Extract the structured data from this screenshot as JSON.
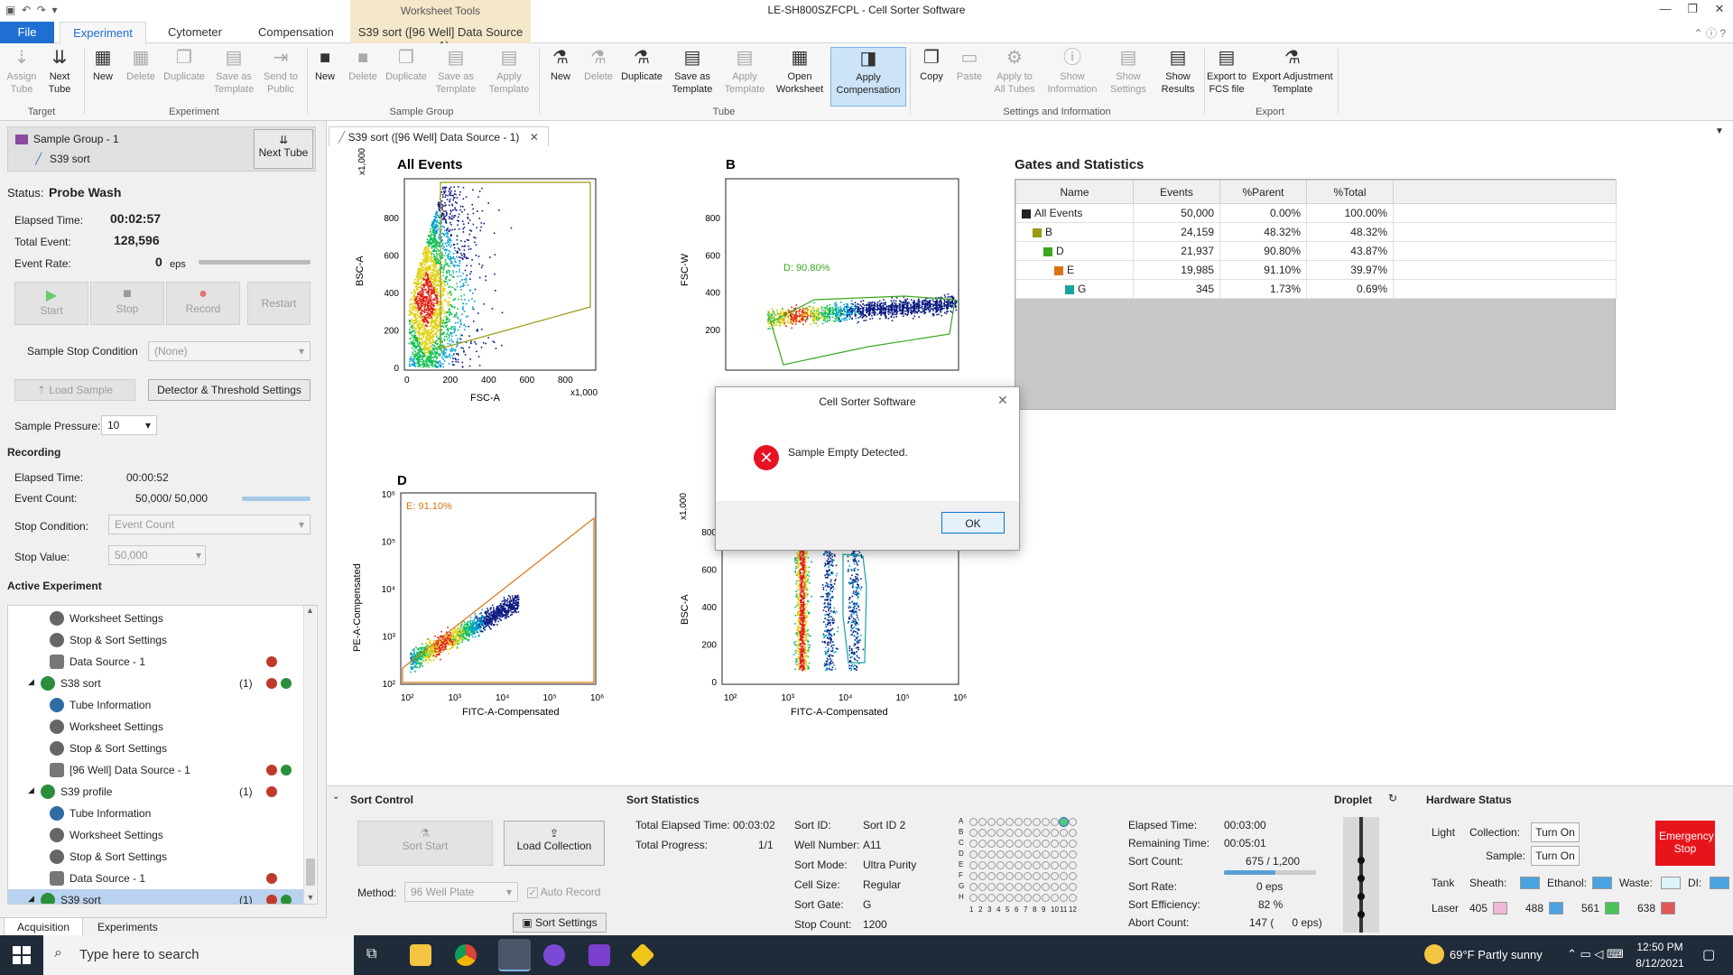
{
  "app": {
    "title": "LE-SH800SZFCPL - Cell Sorter Software",
    "context_tab_header": "Worksheet Tools"
  },
  "tabs": [
    "File",
    "Experiment",
    "Cytometer",
    "Compensation",
    "S39 sort ([96 Well] Data Source - 1)"
  ],
  "ribbon": {
    "target": {
      "label": "Target",
      "buttons": [
        "Assign Tube",
        "Next Tube"
      ]
    },
    "experiment": {
      "label": "Experiment",
      "buttons": [
        "New",
        "Delete",
        "Duplicate",
        "Save as Template",
        "Send to Public"
      ]
    },
    "sample_group": {
      "label": "Sample Group",
      "buttons": [
        "New",
        "Delete",
        "Duplicate",
        "Save as Template",
        "Apply Template"
      ]
    },
    "tube": {
      "label": "Tube",
      "buttons": [
        "New",
        "Delete",
        "Duplicate",
        "Save as Template",
        "Apply Template",
        "Open Worksheet",
        "Apply Compensation"
      ]
    },
    "settings": {
      "label": "Settings and Information",
      "buttons": [
        "Copy",
        "Paste",
        "Apply to All Tubes",
        "Show Information",
        "Show Settings",
        "Show Results"
      ]
    },
    "export": {
      "label": "Export",
      "buttons": [
        "Export to FCS file",
        "Export Adjustment Template"
      ]
    }
  },
  "left": {
    "sample_group": "Sample Group - 1",
    "sample": "S39 sort",
    "next_tube": "Next Tube",
    "status_label": "Status:",
    "status": "Probe Wash",
    "elapsed_label": "Elapsed Time:",
    "elapsed": "00:02:57",
    "total_event_label": "Total Event:",
    "total_event": "128,596",
    "event_rate_label": "Event Rate:",
    "event_rate": "0",
    "eps": "eps",
    "controls": [
      "Start",
      "Stop",
      "Record",
      "Restart"
    ],
    "stop_condition_label": "Sample Stop Condition",
    "stop_condition": "(None)",
    "load_sample": "Load Sample",
    "detector_btn": "Detector & Threshold Settings",
    "pressure_label": "Sample Pressure:",
    "pressure": "10",
    "recording_label": "Recording",
    "rec_elapsed_label": "Elapsed Time:",
    "rec_elapsed": "00:00:52",
    "rec_event_count_label": "Event Count:",
    "rec_event_count": "50,000/ 50,000",
    "rec_stop_cond_label": "Stop Condition:",
    "rec_stop_cond": "Event Count",
    "rec_stop_value_label": "Stop Value:",
    "rec_stop_value": "50,000",
    "active_exp_label": "Active Experiment",
    "tree": [
      {
        "label": "Worksheet Settings",
        "indent": 2,
        "icon": "gear",
        "count": "",
        "dots": ""
      },
      {
        "label": "Stop & Sort Settings",
        "indent": 2,
        "icon": "gear",
        "count": "",
        "dots": ""
      },
      {
        "label": "Data Source - 1",
        "indent": 2,
        "icon": "db",
        "count": "",
        "dots": "r"
      },
      {
        "label": "S38 sort",
        "indent": 1,
        "icon": "tube",
        "count": "(1)",
        "dots": "rg"
      },
      {
        "label": "Tube Information",
        "indent": 2,
        "icon": "info",
        "count": "",
        "dots": ""
      },
      {
        "label": "Worksheet Settings",
        "indent": 2,
        "icon": "gear",
        "count": "",
        "dots": ""
      },
      {
        "label": "Stop & Sort Settings",
        "indent": 2,
        "icon": "gear",
        "count": "",
        "dots": ""
      },
      {
        "label": "[96 Well] Data Source - 1",
        "indent": 2,
        "icon": "db",
        "count": "",
        "dots": "rg"
      },
      {
        "label": "S39 profile",
        "indent": 1,
        "icon": "tube",
        "count": "(1)",
        "dots": "r"
      },
      {
        "label": "Tube Information",
        "indent": 2,
        "icon": "info",
        "count": "",
        "dots": ""
      },
      {
        "label": "Worksheet Settings",
        "indent": 2,
        "icon": "gear",
        "count": "",
        "dots": ""
      },
      {
        "label": "Stop & Sort Settings",
        "indent": 2,
        "icon": "gear",
        "count": "",
        "dots": ""
      },
      {
        "label": "Data Source - 1",
        "indent": 2,
        "icon": "db",
        "count": "",
        "dots": "r"
      },
      {
        "label": "S39 sort",
        "indent": 1,
        "icon": "tube",
        "count": "(1)",
        "dots": "rg",
        "selected": true
      }
    ],
    "bottom_tabs": [
      "Acquisition",
      "Experiments"
    ]
  },
  "doc_tab": "S39 sort ([96 Well] Data Source - 1)",
  "plots": {
    "all_events": {
      "title": "All Events",
      "xlabel": "FSC-A",
      "ylabel": "BSC-A",
      "x_ticks": [
        "0",
        "200",
        "400",
        "600",
        "800"
      ],
      "y_ticks": [
        "0",
        "200",
        "400",
        "600",
        "800"
      ],
      "mult": "x1,000"
    },
    "b": {
      "title": "B",
      "ylabel": "FSC-W",
      "y_ticks": [
        "200",
        "400",
        "600",
        "800"
      ],
      "gate": "D: 90.80%"
    },
    "d": {
      "title": "D",
      "xlabel": "FITC-A-Compensated",
      "ylabel": "PE-A-Compensated",
      "x_ticks": [
        "10²",
        "10³",
        "10⁴",
        "10⁵",
        "10⁶"
      ],
      "y_ticks": [
        "10²",
        "10³",
        "10⁴",
        "10⁵",
        "10⁶"
      ],
      "gate": "E: 91.10%"
    },
    "e": {
      "xlabel": "FITC-A-Compensated",
      "ylabel": "BSC-A",
      "x_ticks": [
        "10²",
        "10³",
        "10⁴",
        "10⁵",
        "10⁶"
      ],
      "y_ticks": [
        "0",
        "200",
        "400",
        "600",
        "800"
      ],
      "mult": "x1,000"
    }
  },
  "gates": {
    "title": "Gates and Statistics",
    "headers": [
      "Name",
      "Events",
      "%Parent",
      "%Total"
    ],
    "rows": [
      {
        "name": "All Events",
        "events": "50,000",
        "parent": "0.00%",
        "total": "100.00%",
        "color": "#222222",
        "indent": 0
      },
      {
        "name": "B",
        "events": "24,159",
        "parent": "48.32%",
        "total": "48.32%",
        "color": "#9a9a10",
        "indent": 1
      },
      {
        "name": "D",
        "events": "21,937",
        "parent": "90.80%",
        "total": "43.87%",
        "color": "#3aa81c",
        "indent": 2
      },
      {
        "name": "E",
        "events": "19,985",
        "parent": "91.10%",
        "total": "39.97%",
        "color": "#d9730f",
        "indent": 3
      },
      {
        "name": "G",
        "events": "345",
        "parent": "1.73%",
        "total": "0.69%",
        "color": "#18a3a3",
        "indent": 4
      }
    ]
  },
  "dialog": {
    "title": "Cell Sorter Software",
    "message": "Sample Empty Detected.",
    "ok": "OK"
  },
  "sort_control": {
    "title": "Sort Control",
    "sort_start": "Sort Start",
    "load_collection": "Load Collection",
    "method_label": "Method:",
    "method": "96 Well Plate",
    "auto_record": "Auto Record",
    "sort_settings": "Sort Settings"
  },
  "sort_stats": {
    "title": "Sort Statistics",
    "total_elapsed_label": "Total Elapsed Time:",
    "total_elapsed": "00:03:02",
    "total_progress_label": "Total Progress:",
    "total_progress": "1/1",
    "sort_id_label": "Sort ID:",
    "sort_id": "Sort ID 2",
    "well_label": "Well Number:",
    "well": "A11",
    "mode_label": "Sort Mode:",
    "mode": "Ultra Purity",
    "cell_size_label": "Cell Size:",
    "cell_size": "Regular",
    "gate_label": "Sort Gate:",
    "gate": "G",
    "stop_count_label": "Stop Count:",
    "stop_count": "1200",
    "elapsed_label": "Elapsed Time:",
    "elapsed": "00:03:00",
    "remaining_label": "Remaining Time:",
    "remaining": "00:05:01",
    "sort_count_label": "Sort Count:",
    "sort_count": "675 / 1,200",
    "sort_rate_label": "Sort Rate:",
    "sort_rate": "0 eps",
    "efficiency_label": "Sort Efficiency:",
    "efficiency": "82 %",
    "abort_label": "Abort Count:",
    "abort": "147 (      0 eps)",
    "plate_rows": [
      "A",
      "B",
      "C",
      "D",
      "E",
      "F",
      "G",
      "H"
    ],
    "plate_cols": [
      "1",
      "2",
      "3",
      "4",
      "5",
      "6",
      "7",
      "8",
      "9",
      "10",
      "11",
      "12"
    ]
  },
  "droplet": {
    "title": "Droplet"
  },
  "hardware": {
    "title": "Hardware Status",
    "light_label": "Light",
    "collection_label": "Collection:",
    "sample_label": "Sample:",
    "turn_on": "Turn On",
    "emergency": "Emergency Stop",
    "tank_label": "Tank",
    "sheath": "Sheath:",
    "ethanol": "Ethanol:",
    "waste": "Waste:",
    "di": "DI:",
    "laser_label": "Laser",
    "lasers": [
      "405",
      "488",
      "561",
      "638"
    ],
    "laser_colors": [
      "#f2b6d6",
      "#4aa3e0",
      "#4cc35a",
      "#e05858"
    ]
  },
  "taskbar": {
    "search": "Type here to search",
    "weather": "69°F  Partly sunny",
    "time": "12:50 PM",
    "date": "8/12/2021"
  },
  "colors": {
    "accent": "#1e6fd1",
    "ctx_tab": "#f5e7c9",
    "emergency": "#e8141b",
    "selected_row": "#b9d2ef"
  }
}
